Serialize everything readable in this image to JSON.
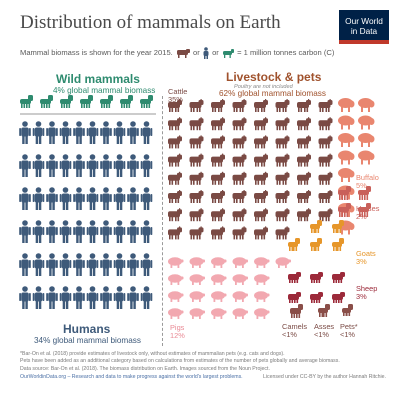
{
  "header": {
    "title": "Distribution of mammals on Earth",
    "subtitle_pre": "Mammal biomass is shown for the year 2015.",
    "subtitle_or1": "or",
    "subtitle_or2": "or",
    "subtitle_eq": "= 1 million tonnes carbon (C)"
  },
  "logo": {
    "line1": "Our World",
    "line2": "in Data"
  },
  "chart_data": {
    "type": "pictogram",
    "unit": "1 million tonnes carbon (C)",
    "groups": [
      {
        "name": "Wild mammals",
        "share_text": "4% global mammal biomass",
        "categories": [
          {
            "name": "Wild mammals",
            "units": 7
          }
        ]
      },
      {
        "name": "Humans",
        "share_text": "34% global mammal biomass",
        "categories": [
          {
            "name": "Humans",
            "units": 60
          }
        ]
      },
      {
        "name": "Livestock & pets",
        "share_text": "62% global mammal biomass",
        "note": "Poultry are not included",
        "categories": [
          {
            "name": "Cattle",
            "pct": "35%",
            "units": 62
          },
          {
            "name": "Buffalo",
            "pct": "5%",
            "units": 8
          },
          {
            "name": "Horses",
            "pct": "2%",
            "units": 4
          },
          {
            "name": "Goats",
            "pct": "3%",
            "units": 5
          },
          {
            "name": "Sheep",
            "pct": "3%",
            "units": 6
          },
          {
            "name": "Pigs",
            "pct": "12%",
            "units": 21
          },
          {
            "name": "Camels",
            "pct": "<1%",
            "units": 1
          },
          {
            "name": "Asses",
            "pct": "<1%",
            "units": 1
          },
          {
            "name": "Pets*",
            "pct": "<1%",
            "units": 1
          }
        ]
      }
    ],
    "colors": {
      "wild": "#2e8b6f",
      "humans": "#3e5a7a",
      "cattle": "#7a4a44",
      "buffalo": "#e9866f",
      "horses": "#c9605a",
      "goats": "#e6962a",
      "sheep": "#9c2a3a",
      "pigs": "#f2a8b0",
      "small": "#8a4e48"
    }
  },
  "footer": {
    "note1": "*Bar-On et al. (2018) provide estimates of livestock only, without estimates of mammalian pets (e.g. cats and dogs).",
    "note2": "Pets have been added as an additional category based on calculations from estimates of the number of pets globally and average biomass.",
    "source": "Data source: Bar-On et al. (2018). The biomass distribution on Earth. Images sourced from the Noun Project.",
    "site": "OurWorldinData.org – Research and data to make progress against the world's largest problems.",
    "license": "Licensed under CC-BY by the author Hannah Ritchie."
  }
}
